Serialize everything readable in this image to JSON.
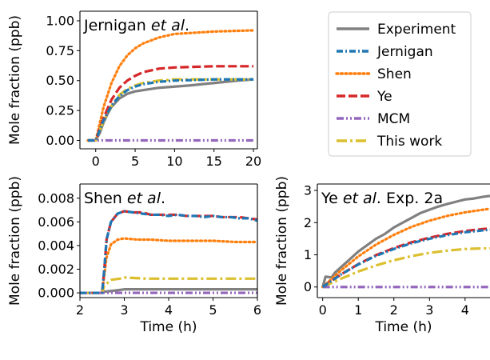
{
  "chart_data": [
    {
      "type": "line",
      "panel": "jernigan",
      "title_parts": [
        {
          "text": "Jernigan "
        },
        {
          "text": "et al",
          "italic": true
        },
        {
          "text": "."
        }
      ],
      "xlabel": "",
      "ylabel": "Mole fraction (ppb)",
      "xlim": [
        -2,
        20.5
      ],
      "ylim": [
        -0.07,
        1.08
      ],
      "xticks": [
        0,
        5,
        10,
        15,
        20
      ],
      "xtick_labels": [
        "0",
        "5",
        "10",
        "15",
        "20"
      ],
      "yticks": [
        0.0,
        0.25,
        0.5,
        0.75,
        1.0
      ],
      "ytick_labels": [
        "0.00",
        "0.25",
        "0.50",
        "0.75",
        "1.00"
      ],
      "series": [
        {
          "name": "Experiment",
          "points": [
            [
              -1,
              0
            ],
            [
              0,
              0
            ],
            [
              0.5,
              0.06
            ],
            [
              1,
              0.15
            ],
            [
              1.5,
              0.22
            ],
            [
              2,
              0.28
            ],
            [
              3,
              0.35
            ],
            [
              4,
              0.39
            ],
            [
              5,
              0.41
            ],
            [
              6,
              0.42
            ],
            [
              8,
              0.44
            ],
            [
              10,
              0.45
            ],
            [
              12,
              0.46
            ],
            [
              15,
              0.48
            ],
            [
              18,
              0.5
            ],
            [
              20,
              0.51
            ]
          ]
        },
        {
          "name": "Jernigan",
          "points": [
            [
              -1,
              0
            ],
            [
              0,
              0
            ],
            [
              1,
              0.17
            ],
            [
              2,
              0.29
            ],
            [
              3,
              0.37
            ],
            [
              4,
              0.42
            ],
            [
              5,
              0.45
            ],
            [
              6,
              0.47
            ],
            [
              8,
              0.49
            ],
            [
              10,
              0.5
            ],
            [
              15,
              0.51
            ],
            [
              20,
              0.51
            ]
          ]
        },
        {
          "name": "Shen",
          "points": [
            [
              -1,
              0
            ],
            [
              0,
              0
            ],
            [
              1,
              0.28
            ],
            [
              2,
              0.48
            ],
            [
              3,
              0.62
            ],
            [
              4,
              0.71
            ],
            [
              5,
              0.77
            ],
            [
              6,
              0.81
            ],
            [
              8,
              0.86
            ],
            [
              10,
              0.89
            ],
            [
              15,
              0.91
            ],
            [
              20,
              0.92
            ]
          ]
        },
        {
          "name": "Ye",
          "points": [
            [
              -1,
              0
            ],
            [
              0,
              0
            ],
            [
              1,
              0.19
            ],
            [
              2,
              0.34
            ],
            [
              3,
              0.44
            ],
            [
              4,
              0.5
            ],
            [
              5,
              0.54
            ],
            [
              6,
              0.57
            ],
            [
              8,
              0.6
            ],
            [
              10,
              0.61
            ],
            [
              15,
              0.62
            ],
            [
              20,
              0.62
            ]
          ]
        },
        {
          "name": "MCM",
          "points": [
            [
              -1,
              0
            ],
            [
              20,
              0
            ]
          ]
        },
        {
          "name": "This work",
          "points": [
            [
              -1,
              0
            ],
            [
              0,
              0
            ],
            [
              1,
              0.16
            ],
            [
              2,
              0.29
            ],
            [
              3,
              0.38
            ],
            [
              4,
              0.43
            ],
            [
              5,
              0.46
            ],
            [
              6,
              0.48
            ],
            [
              8,
              0.5
            ],
            [
              10,
              0.51
            ],
            [
              15,
              0.51
            ],
            [
              20,
              0.51
            ]
          ]
        }
      ]
    },
    {
      "type": "line",
      "panel": "shen",
      "title_parts": [
        {
          "text": "Shen "
        },
        {
          "text": "et al",
          "italic": true
        },
        {
          "text": "."
        }
      ],
      "xlabel": "Time (h)",
      "ylabel": "Mole fraction (ppb)",
      "xlim": [
        2,
        6
      ],
      "ylim": [
        -0.0004,
        0.0092
      ],
      "xticks": [
        2,
        3,
        4,
        5,
        6
      ],
      "xtick_labels": [
        "2",
        "3",
        "4",
        "5",
        "6"
      ],
      "yticks": [
        0.0,
        0.002,
        0.004,
        0.006,
        0.008
      ],
      "ytick_labels": [
        "0.000",
        "0.002",
        "0.004",
        "0.006",
        "0.008"
      ],
      "series": [
        {
          "name": "Experiment",
          "points": [
            [
              2,
              0.0
            ],
            [
              2.5,
              0.0
            ],
            [
              2.55,
              0.0001
            ],
            [
              2.8,
              0.0002
            ],
            [
              3.0,
              0.0003
            ],
            [
              3.5,
              0.0003
            ],
            [
              4,
              0.0003
            ],
            [
              4.5,
              0.0003
            ],
            [
              5,
              0.0003
            ],
            [
              5.5,
              0.0003
            ],
            [
              6,
              0.0003
            ]
          ]
        },
        {
          "name": "Jernigan",
          "points": [
            [
              2,
              0.0
            ],
            [
              2.5,
              0.0
            ],
            [
              2.55,
              0.002
            ],
            [
              2.6,
              0.0045
            ],
            [
              2.7,
              0.006
            ],
            [
              2.85,
              0.0067
            ],
            [
              3.0,
              0.0069
            ],
            [
              3.2,
              0.0068
            ],
            [
              3.4,
              0.0067
            ],
            [
              3.6,
              0.0066
            ],
            [
              3.8,
              0.0066
            ],
            [
              4.0,
              0.0065
            ],
            [
              4.2,
              0.0066
            ],
            [
              4.4,
              0.0065
            ],
            [
              4.6,
              0.0065
            ],
            [
              4.8,
              0.0064
            ],
            [
              5.0,
              0.0065
            ],
            [
              5.2,
              0.0064
            ],
            [
              5.4,
              0.0064
            ],
            [
              5.6,
              0.0063
            ],
            [
              5.8,
              0.0063
            ],
            [
              6.0,
              0.0061
            ]
          ]
        },
        {
          "name": "Shen",
          "points": [
            [
              2,
              0.0
            ],
            [
              2.5,
              0.0
            ],
            [
              2.55,
              0.0015
            ],
            [
              2.6,
              0.003
            ],
            [
              2.7,
              0.0041
            ],
            [
              2.85,
              0.0045
            ],
            [
              3.0,
              0.0046
            ],
            [
              3.3,
              0.0045
            ],
            [
              3.6,
              0.0045
            ],
            [
              4.0,
              0.0044
            ],
            [
              4.5,
              0.0044
            ],
            [
              5.0,
              0.0044
            ],
            [
              5.5,
              0.0043
            ],
            [
              6.0,
              0.0043
            ]
          ]
        },
        {
          "name": "Ye",
          "points": [
            [
              2,
              0.0
            ],
            [
              2.5,
              0.0
            ],
            [
              2.55,
              0.002
            ],
            [
              2.6,
              0.0045
            ],
            [
              2.7,
              0.006
            ],
            [
              2.85,
              0.0067
            ],
            [
              3.0,
              0.0069
            ],
            [
              3.2,
              0.0068
            ],
            [
              3.4,
              0.0068
            ],
            [
              3.6,
              0.0066
            ],
            [
              3.8,
              0.0066
            ],
            [
              4.0,
              0.0066
            ],
            [
              4.2,
              0.0066
            ],
            [
              4.4,
              0.0065
            ],
            [
              4.6,
              0.0065
            ],
            [
              4.8,
              0.0065
            ],
            [
              5.0,
              0.0065
            ],
            [
              5.2,
              0.0064
            ],
            [
              5.4,
              0.0064
            ],
            [
              5.6,
              0.0064
            ],
            [
              5.8,
              0.0063
            ],
            [
              6.0,
              0.0062
            ]
          ]
        },
        {
          "name": "MCM",
          "points": [
            [
              2,
              0.0
            ],
            [
              6,
              0.0
            ]
          ]
        },
        {
          "name": "This work",
          "points": [
            [
              2,
              0.0
            ],
            [
              2.5,
              0.0
            ],
            [
              2.55,
              0.0006
            ],
            [
              2.7,
              0.0011
            ],
            [
              2.9,
              0.0012
            ],
            [
              3.0,
              0.0013
            ],
            [
              3.5,
              0.0012
            ],
            [
              4,
              0.0012
            ],
            [
              4.5,
              0.0012
            ],
            [
              5,
              0.0012
            ],
            [
              5.5,
              0.0012
            ],
            [
              6,
              0.0012
            ]
          ]
        }
      ]
    },
    {
      "type": "line",
      "panel": "ye",
      "title_parts": [
        {
          "text": "Ye "
        },
        {
          "text": "et al",
          "italic": true
        },
        {
          "text": ".  Exp. 2a"
        }
      ],
      "xlabel": "Time (h)",
      "ylabel": "Mole fraction (ppb)",
      "xlim": [
        -0.15,
        4.7
      ],
      "ylim": [
        -0.33,
        3.2
      ],
      "xticks": [
        0,
        1,
        2,
        3,
        4
      ],
      "xtick_labels": [
        "0",
        "1",
        "2",
        "3",
        "4"
      ],
      "yticks": [
        0,
        1,
        2,
        3
      ],
      "ytick_labels": [
        "0",
        "1",
        "2",
        "3"
      ],
      "series": [
        {
          "name": "Experiment",
          "points": [
            [
              0,
              0.0
            ],
            [
              0.08,
              0.32
            ],
            [
              0.25,
              0.3
            ],
            [
              0.35,
              0.45
            ],
            [
              0.5,
              0.6
            ],
            [
              0.75,
              0.85
            ],
            [
              1.0,
              1.1
            ],
            [
              1.25,
              1.3
            ],
            [
              1.5,
              1.5
            ],
            [
              1.75,
              1.65
            ],
            [
              2.0,
              1.85
            ],
            [
              2.25,
              2.0
            ],
            [
              2.5,
              2.15
            ],
            [
              2.75,
              2.3
            ],
            [
              3.0,
              2.4
            ],
            [
              3.25,
              2.5
            ],
            [
              3.5,
              2.58
            ],
            [
              3.75,
              2.65
            ],
            [
              4.0,
              2.72
            ],
            [
              4.25,
              2.75
            ],
            [
              4.5,
              2.8
            ],
            [
              4.7,
              2.83
            ]
          ]
        },
        {
          "name": "Jernigan",
          "points": [
            [
              0,
              0.0
            ],
            [
              0.5,
              0.38
            ],
            [
              1.0,
              0.7
            ],
            [
              1.5,
              0.97
            ],
            [
              2.0,
              1.18
            ],
            [
              2.5,
              1.36
            ],
            [
              3.0,
              1.5
            ],
            [
              3.5,
              1.61
            ],
            [
              4.0,
              1.7
            ],
            [
              4.5,
              1.76
            ],
            [
              4.7,
              1.78
            ]
          ]
        },
        {
          "name": "Shen",
          "points": [
            [
              0,
              0.0
            ],
            [
              0.5,
              0.5
            ],
            [
              1.0,
              0.95
            ],
            [
              1.5,
              1.32
            ],
            [
              2.0,
              1.62
            ],
            [
              2.5,
              1.87
            ],
            [
              3.0,
              2.06
            ],
            [
              3.5,
              2.21
            ],
            [
              4.0,
              2.32
            ],
            [
              4.5,
              2.4
            ],
            [
              4.7,
              2.43
            ]
          ]
        },
        {
          "name": "Ye",
          "points": [
            [
              0,
              0.0
            ],
            [
              0.5,
              0.38
            ],
            [
              1.0,
              0.71
            ],
            [
              1.5,
              0.99
            ],
            [
              2.0,
              1.21
            ],
            [
              2.5,
              1.39
            ],
            [
              3.0,
              1.53
            ],
            [
              3.5,
              1.65
            ],
            [
              4.0,
              1.74
            ],
            [
              4.5,
              1.8
            ],
            [
              4.7,
              1.82
            ]
          ]
        },
        {
          "name": "MCM",
          "points": [
            [
              0,
              0.0
            ],
            [
              4.7,
              0.0
            ]
          ]
        },
        {
          "name": "This work",
          "points": [
            [
              0,
              0.0
            ],
            [
              0.5,
              0.25
            ],
            [
              1.0,
              0.48
            ],
            [
              1.5,
              0.67
            ],
            [
              2.0,
              0.83
            ],
            [
              2.5,
              0.96
            ],
            [
              3.0,
              1.06
            ],
            [
              3.5,
              1.13
            ],
            [
              4.0,
              1.18
            ],
            [
              4.5,
              1.2
            ],
            [
              4.7,
              1.2
            ]
          ]
        }
      ]
    }
  ],
  "legend": {
    "position": "top-right",
    "entries": [
      {
        "label": "Experiment",
        "color": "#808080",
        "style": "solid"
      },
      {
        "label": "Jernigan",
        "color": "#1f77b4",
        "style": "dashdot"
      },
      {
        "label": "Shen",
        "color": "#ff7f0e",
        "style": "dotted"
      },
      {
        "label": "Ye",
        "color": "#d62728",
        "style": "dashed"
      },
      {
        "label": "MCM",
        "color": "#9467bd",
        "style": "dashdotdot"
      },
      {
        "label": "This work",
        "color": "#dbbf2f",
        "style": "longdashdot"
      }
    ]
  }
}
